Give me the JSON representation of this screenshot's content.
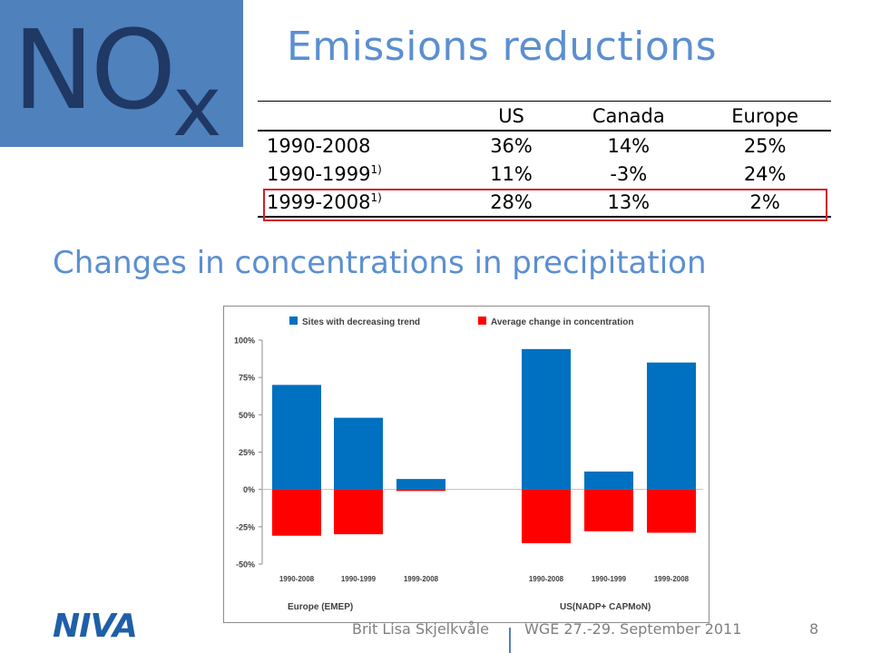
{
  "slide": {
    "badge_main": "NO",
    "badge_sub": "x",
    "title": "Emissions reductions",
    "subtitle": "Changes in concentrations in precipitation",
    "logo": "NIVA",
    "author": "Brit Lisa Skjelkvåle",
    "event": "WGE 27.-29. September 2011",
    "page": "8"
  },
  "table": {
    "headers": [
      "",
      "US",
      "Canada",
      "Europe"
    ],
    "rows": [
      {
        "period": "1990-2008",
        "note": "",
        "us": "36%",
        "canada": "14%",
        "europe": "25%"
      },
      {
        "period": "1990-1999",
        "note": "1)",
        "us": "11%",
        "canada": "-3%",
        "europe": "24%"
      },
      {
        "period": "1999-2008",
        "note": "1)",
        "us": "28%",
        "canada": "13%",
        "europe": "2%"
      }
    ],
    "highlight_color": "#d0202a"
  },
  "chart_data": {
    "type": "bar",
    "groups": [
      "Europe (EMEP)",
      "US(NADP+ CAPMoN)"
    ],
    "categories": [
      "1990-2008",
      "1990-1999",
      "1999-2008",
      "1990-2008",
      "1990-1999",
      "1999-2008"
    ],
    "series": [
      {
        "name": "Sites with decreasing trend",
        "color": "#0070c0",
        "values": [
          70,
          48,
          7,
          94,
          12,
          85
        ]
      },
      {
        "name": "Average change in concentration",
        "color": "#ff0000",
        "values": [
          -31,
          -30,
          -1,
          -36,
          -28,
          -29
        ]
      }
    ],
    "yticks": [
      "100%",
      "75%",
      "50%",
      "25%",
      "0%",
      "-25%",
      "-50%"
    ],
    "ylim": [
      -50,
      100
    ],
    "legend_position": "top"
  }
}
